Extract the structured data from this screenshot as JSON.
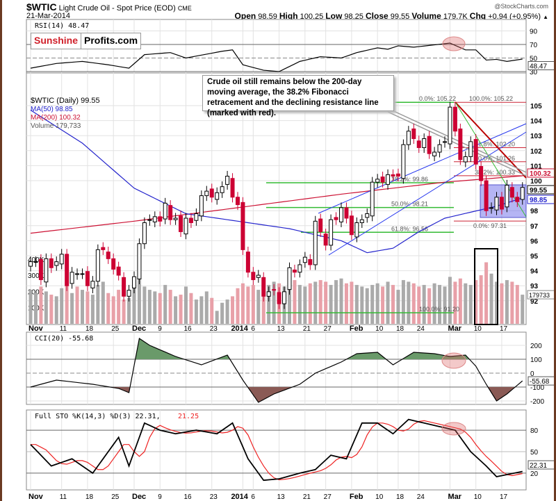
{
  "header": {
    "symbol": "$WTIC",
    "name": "Light Crude Oil - Spot Price (EOD)",
    "exchange": "CME",
    "date": "21-Mar-2014",
    "copyright": "@StockCharts.com",
    "open_label": "Open",
    "open": "98.59",
    "high_label": "High",
    "high": "100.25",
    "low_label": "Low",
    "low": "98.25",
    "close_label": "Close",
    "close": "99.55",
    "volume_label": "Volume",
    "volume": "179.7K",
    "chg_label": "Chg",
    "chg": "+0.94 (+0.95%)"
  },
  "logo": {
    "part1": "Sunshine",
    "part2": "Profits.com"
  },
  "annotation": "Crude oil still remains below the 200-day moving average, the 38.2% Fibonacci retracement and the declining resistance line (marked with red).",
  "colors": {
    "up": "#ffffff",
    "down": "#cc0033",
    "ma50": "#2222cc",
    "ma200": "#cc1133",
    "vol_up": "#aaaaaa",
    "vol_down": "#e8a0a8",
    "fib_green": "#33bb33",
    "fib_red": "#cc2233",
    "channel": "#2233ee",
    "cci_pos": "#6a9a6a",
    "cci_neg": "#8a5a55"
  },
  "chart_data": [
    {
      "type": "line",
      "title": "RSI(14) 48.47",
      "legend": "RSI(14) 48.47",
      "yticks": [
        90,
        70,
        50,
        30
      ],
      "last_label": "48.47",
      "points": [
        [
          0,
          35
        ],
        [
          5,
          42
        ],
        [
          10,
          45
        ],
        [
          15,
          40
        ],
        [
          19,
          35
        ],
        [
          22,
          55
        ],
        [
          27,
          58
        ],
        [
          30,
          50
        ],
        [
          37,
          60
        ],
        [
          39,
          62
        ],
        [
          41,
          40
        ],
        [
          45,
          32
        ],
        [
          48,
          30
        ],
        [
          52,
          45
        ],
        [
          56,
          52
        ],
        [
          60,
          50
        ],
        [
          63,
          58
        ],
        [
          67,
          65
        ],
        [
          69,
          63
        ],
        [
          71,
          68
        ],
        [
          74,
          66
        ],
        [
          81,
          72
        ],
        [
          84,
          62
        ],
        [
          86,
          62
        ],
        [
          88,
          47
        ],
        [
          90,
          48
        ],
        [
          92,
          45
        ],
        [
          95,
          48.47
        ]
      ]
    },
    {
      "type": "candlestick",
      "title": "$WTIC (Daily) 99.55",
      "legend": [
        "$WTIC (Daily) 99.55",
        "MA(50) 98.85",
        "MA(200) 100.32",
        "Volume 179,733"
      ],
      "ylim": [
        91,
        105.5
      ],
      "yticks": [
        105,
        104,
        103,
        102,
        101,
        100,
        98,
        97,
        96,
        95,
        94,
        93,
        92
      ],
      "vol_ticks": [
        "400K",
        "300K",
        "200K",
        "100K"
      ],
      "price_boxes": {
        "ma200": "100.32",
        "close": "99.55",
        "ma50": "98.85",
        "volume": "179733"
      },
      "xlabels": [
        {
          "i": 0,
          "t": "Nov",
          "bold": true
        },
        {
          "i": 6,
          "t": "11"
        },
        {
          "i": 11,
          "t": "18"
        },
        {
          "i": 16,
          "t": "25"
        },
        {
          "i": 20,
          "t": "Dec",
          "bold": true
        },
        {
          "i": 25,
          "t": "9"
        },
        {
          "i": 30,
          "t": "16"
        },
        {
          "i": 35,
          "t": "23"
        },
        {
          "i": 41,
          "t": "2014",
          "bold": true
        },
        {
          "i": 43,
          "t": "6"
        },
        {
          "i": 48,
          "t": "13"
        },
        {
          "i": 53,
          "t": "21"
        },
        {
          "i": 57,
          "t": "27"
        },
        {
          "i": 62,
          "t": "Feb",
          "bold": true
        },
        {
          "i": 67,
          "t": "10"
        },
        {
          "i": 71,
          "t": "18"
        },
        {
          "i": 75,
          "t": "24"
        },
        {
          "i": 81,
          "t": "Mar",
          "bold": true
        },
        {
          "i": 86,
          "t": "10"
        },
        {
          "i": 91,
          "t": "17"
        }
      ],
      "close": [
        94.6,
        94.6,
        93.4,
        94.8,
        94.2,
        94.6,
        95.1,
        93.0,
        93.9,
        93.8,
        93.8,
        93.0,
        93.3,
        95.4,
        95.4,
        94.8,
        94.1,
        93.7,
        92.3,
        92.7,
        93.6,
        95.8,
        97.2,
        97.4,
        97.6,
        97.3,
        98.5,
        97.4,
        97.5,
        96.6,
        97.5,
        97.2,
        97.8,
        99.0,
        99.3,
        98.9,
        99.2,
        99.6,
        100.3,
        98.9,
        98.4,
        95.4,
        93.9,
        93.4,
        93.7,
        92.3,
        92.6,
        92.7,
        91.8,
        92.6,
        94.2,
        93.9,
        94.4,
        94.9,
        94.4,
        97.3,
        96.6,
        95.7,
        97.4,
        97.4,
        98.2,
        97.5,
        96.4,
        97.2,
        97.4,
        97.8,
        99.9,
        100.1,
        99.9,
        100.4,
        100.3,
        100.3,
        102.4,
        103.3,
        102.8,
        102.2,
        102.8,
        101.8,
        101.9,
        102.4,
        102.6,
        104.9,
        103.3,
        101.4,
        101.6,
        102.6,
        101.1,
        100.0,
        98.0,
        98.2,
        98.9,
        98.1,
        99.7,
        98.9,
        98.6,
        99.55
      ],
      "volume": [
        210,
        190,
        230,
        200,
        180,
        170,
        220,
        250,
        190,
        230,
        210,
        200,
        180,
        240,
        260,
        190,
        170,
        210,
        150,
        160,
        280,
        300,
        230,
        210,
        200,
        190,
        240,
        210,
        170,
        180,
        230,
        190,
        150,
        170,
        200,
        160,
        80,
        130,
        150,
        170,
        220,
        250,
        230,
        240,
        210,
        250,
        240,
        260,
        250,
        230,
        260,
        270,
        240,
        230,
        250,
        260,
        270,
        260,
        240,
        270,
        280,
        250,
        260,
        240,
        230,
        220,
        240,
        250,
        230,
        260,
        240,
        210,
        270,
        260,
        250,
        230,
        240,
        220,
        250,
        240,
        230,
        290,
        260,
        280,
        250,
        240,
        270,
        300,
        380,
        310,
        260,
        250,
        270,
        260,
        240,
        180
      ],
      "ma50": [
        [
          0,
          104.7
        ],
        [
          10,
          102.5
        ],
        [
          20,
          99.5
        ],
        [
          30,
          97.8
        ],
        [
          40,
          97.3
        ],
        [
          50,
          96.8
        ],
        [
          60,
          96
        ],
        [
          65,
          95.2
        ],
        [
          70,
          95.5
        ],
        [
          75,
          96.6
        ],
        [
          80,
          97.5
        ],
        [
          85,
          97.9
        ],
        [
          90,
          98.3
        ],
        [
          95,
          98.85
        ]
      ],
      "ma200": [
        [
          0,
          96.5
        ],
        [
          20,
          97.3
        ],
        [
          40,
          98.2
        ],
        [
          60,
          99.1
        ],
        [
          80,
          99.9
        ],
        [
          95,
          100.32
        ]
      ],
      "fib_green": [
        {
          "level": 105.22,
          "label": "0.0%: 105.22"
        },
        {
          "level": 99.86,
          "label": "38.2%: 99.86"
        },
        {
          "level": 98.21,
          "label": "50.0%: 98.21"
        },
        {
          "level": 96.56,
          "label": "61.8%: 96.56"
        },
        {
          "level": 91.2,
          "label": "100.0%: 91.20"
        }
      ],
      "fib_red": [
        {
          "level": 105.22,
          "label": "100.0%: 105.22"
        },
        {
          "level": 102.2,
          "label": "61.8%: 102.20"
        },
        {
          "level": 101.26,
          "label": "50.0%: 101.26"
        },
        {
          "level": 100.33,
          "label": "38.2%: 100.33"
        },
        {
          "level": 97.31,
          "label": "0.0%: 97.31"
        }
      ]
    },
    {
      "type": "area",
      "title": "CCI(20) -55.68",
      "legend": "CCI(20) -55.68",
      "yticks": [
        200,
        100,
        0,
        -100,
        -200
      ],
      "last_label": "-55.68",
      "points": [
        [
          0,
          -100
        ],
        [
          5,
          -50
        ],
        [
          12,
          -80
        ],
        [
          17,
          -110
        ],
        [
          19,
          -140
        ],
        [
          21,
          250
        ],
        [
          23,
          200
        ],
        [
          28,
          120
        ],
        [
          33,
          60
        ],
        [
          38,
          130
        ],
        [
          41,
          -50
        ],
        [
          44,
          -210
        ],
        [
          47,
          -150
        ],
        [
          52,
          -80
        ],
        [
          55,
          0
        ],
        [
          60,
          80
        ],
        [
          63,
          140
        ],
        [
          67,
          150
        ],
        [
          70,
          60
        ],
        [
          74,
          150
        ],
        [
          78,
          140
        ],
        [
          81,
          120
        ],
        [
          84,
          130
        ],
        [
          86,
          50
        ],
        [
          88,
          -80
        ],
        [
          90,
          -200
        ],
        [
          92,
          -150
        ],
        [
          95,
          -55.68
        ]
      ]
    },
    {
      "type": "line",
      "title": "Full STO %K(14,3) %D(3)",
      "legend_k": "Full STO %K(14,3) %D(3) 22.31,",
      "legend_d": "21.25",
      "yticks": [
        80,
        50,
        20
      ],
      "last_label": "22.31",
      "k_points": [
        [
          0,
          60
        ],
        [
          4,
          30
        ],
        [
          8,
          40
        ],
        [
          12,
          20
        ],
        [
          17,
          70
        ],
        [
          19,
          30
        ],
        [
          22,
          90
        ],
        [
          25,
          80
        ],
        [
          28,
          75
        ],
        [
          32,
          80
        ],
        [
          36,
          75
        ],
        [
          39,
          90
        ],
        [
          42,
          40
        ],
        [
          45,
          10
        ],
        [
          48,
          12
        ],
        [
          52,
          20
        ],
        [
          55,
          25
        ],
        [
          58,
          45
        ],
        [
          61,
          40
        ],
        [
          64,
          90
        ],
        [
          67,
          90
        ],
        [
          70,
          75
        ],
        [
          73,
          95
        ],
        [
          76,
          90
        ],
        [
          79,
          85
        ],
        [
          82,
          80
        ],
        [
          85,
          50
        ],
        [
          88,
          30
        ],
        [
          90,
          15
        ],
        [
          92,
          18
        ],
        [
          95,
          22.31
        ]
      ]
    }
  ]
}
